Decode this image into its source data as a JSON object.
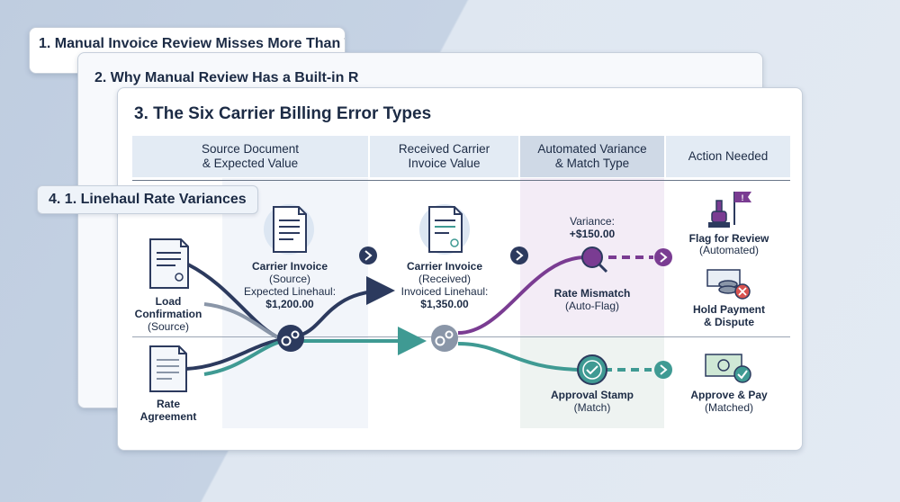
{
  "cards": [
    {
      "title": "1. Manual Invoice Review Misses More Than Tha"
    },
    {
      "title": "2. Why Manual Review Has a Built-in R"
    },
    {
      "title": "3. The Six Carrier Billing Error Types"
    }
  ],
  "step_label": "4. 1. Linehaul Rate Variances",
  "columns": [
    {
      "header": "Source Document\n& Expected Value"
    },
    {
      "header": "Received Carrier\nInvoice Value"
    },
    {
      "header": "Automated Variance\n& Match Type"
    },
    {
      "header": "Action Needed"
    }
  ],
  "source_docs": [
    {
      "name": "Load",
      "name2": "Confirmation",
      "sub": "(Source)"
    },
    {
      "name": "Rate",
      "name2": "Agreement"
    }
  ],
  "expected": {
    "title": "Carrier Invoice",
    "sub": "(Source)",
    "label": "Expected Linehaul:",
    "value": "$1,200.00"
  },
  "received": {
    "title": "Carrier Invoice",
    "sub": "(Received)",
    "label": "Invoiced Linehaul:",
    "value": "$1,350.00"
  },
  "variance": {
    "label": "Variance:",
    "value": "+$150.00"
  },
  "outcomes": [
    {
      "title": "Rate Mismatch",
      "sub": "(Auto-Flag)"
    },
    {
      "title": "Approval Stamp",
      "sub": "(Match)"
    }
  ],
  "actions": [
    {
      "title": "Flag for Review",
      "sub": "(Automated)"
    },
    {
      "title": "Hold Payment",
      "title2": "& Dispute"
    },
    {
      "title": "Approve & Pay",
      "sub": "(Matched)"
    }
  ],
  "colors": {
    "navy": "#2c3a5e",
    "purple": "#7a3c92",
    "teal": "#3f9a93",
    "gray": "#8a96a8"
  }
}
